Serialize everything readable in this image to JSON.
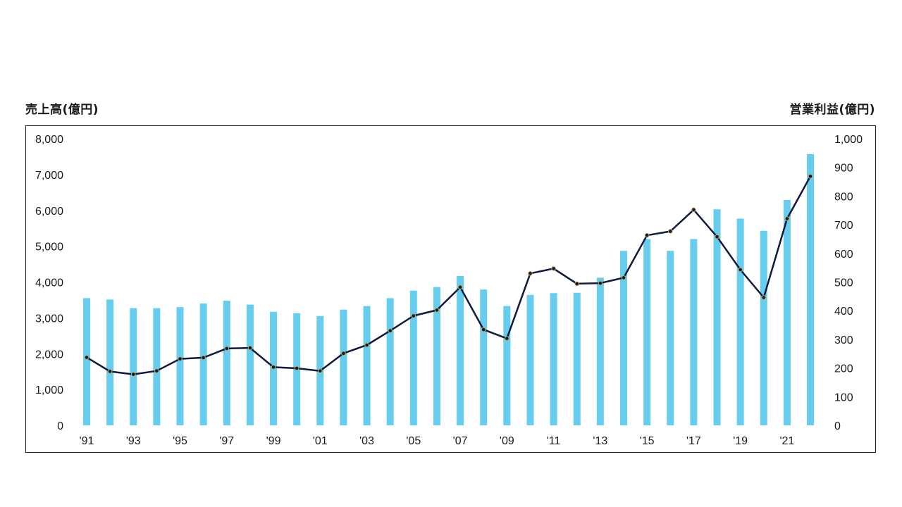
{
  "chart_data": {
    "type": "bar+line",
    "left_axis": {
      "title": "売上高(億円)",
      "ticks": [
        "0",
        "1,000",
        "2,000",
        "3,000",
        "4,000",
        "5,000",
        "6,000",
        "7,000",
        "8,000"
      ],
      "ylim": [
        0,
        8000
      ]
    },
    "right_axis": {
      "title": "営業利益(億円)",
      "ticks": [
        "0",
        "100",
        "200",
        "300",
        "400",
        "500",
        "600",
        "700",
        "800",
        "900",
        "1,000"
      ],
      "ylim": [
        0,
        1000
      ]
    },
    "x_tick_labels": [
      "'91",
      "'93",
      "'95",
      "'97",
      "'99",
      "'01",
      "'03",
      "'05",
      "'07",
      "'09",
      "'11",
      "'13",
      "'15",
      "'17",
      "'19",
      "'21"
    ],
    "x": [
      1991,
      1992,
      1993,
      1994,
      1995,
      1996,
      1997,
      1998,
      1999,
      2000,
      2001,
      2002,
      2003,
      2004,
      2005,
      2006,
      2007,
      2008,
      2009,
      2010,
      2011,
      2012,
      2013,
      2014,
      2015,
      2016,
      2017,
      2018,
      2019,
      2020,
      2021,
      2022
    ],
    "series": [
      {
        "axis": "left",
        "type": "bar",
        "color": "#66cdee",
        "values": [
          3550,
          3510,
          3270,
          3270,
          3300,
          3400,
          3480,
          3370,
          3170,
          3130,
          3050,
          3230,
          3330,
          3550,
          3760,
          3860,
          4170,
          3790,
          3330,
          3640,
          3690,
          3700,
          4120,
          4870,
          5200,
          4870,
          5200,
          6030,
          5770,
          5430,
          6290,
          7570
        ]
      },
      {
        "axis": "right",
        "type": "line",
        "color": "#0f1a3d",
        "marker_color": "#c8a84b",
        "values": [
          237,
          188,
          178,
          190,
          232,
          236,
          268,
          270,
          203,
          199,
          190,
          251,
          280,
          330,
          382,
          402,
          482,
          334,
          303,
          530,
          547,
          494,
          496,
          515,
          663,
          677,
          752,
          658,
          543,
          446,
          721,
          869
        ]
      }
    ]
  }
}
